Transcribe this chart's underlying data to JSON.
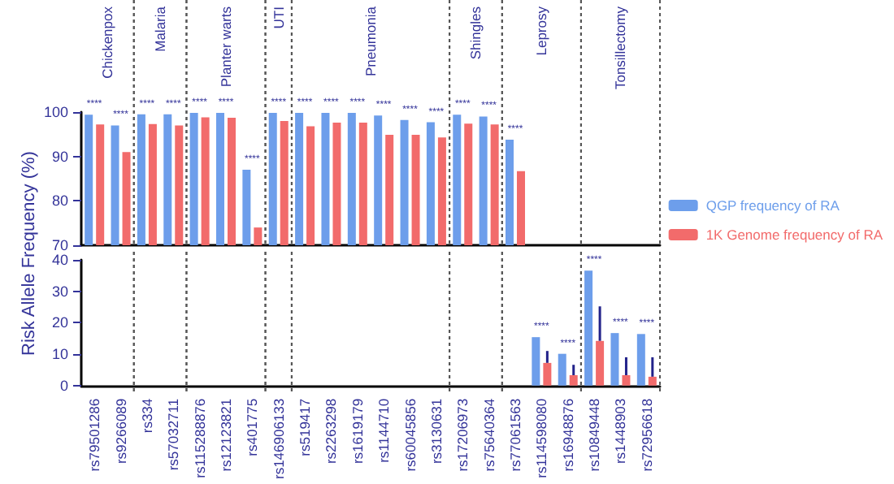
{
  "chart_data": [
    {
      "type": "bar",
      "ylabel": "Risk Allele Frequency (%)",
      "categories": [
        "rs79501286",
        "rs9266089",
        "rs334",
        "rs57032711",
        "rs115288876",
        "rs12123821",
        "rs401775",
        "rs146906133",
        "rs519417",
        "rs2263298",
        "rs1619179",
        "rs1144710",
        "rs60045856",
        "rs3130631",
        "rs17206973",
        "rs75640364",
        "rs77061563",
        "rs114598080",
        "rs16948876",
        "rs10849448",
        "rs1448903",
        "rs72956618"
      ],
      "series": [
        {
          "name": "QGP frequency of RA",
          "color": "#6d9eeb",
          "values": [
            99.4,
            97,
            99.5,
            99.5,
            99.8,
            99.8,
            87,
            99.8,
            99.8,
            99.8,
            99.8,
            99.2,
            98.2,
            97.7,
            99.4,
            99,
            93.8,
            null,
            null,
            null,
            null,
            null
          ]
        },
        {
          "name": "1K Genome frequency of RA",
          "color": "#f26b6b",
          "values": [
            97.2,
            91,
            97.3,
            97,
            98.8,
            98.7,
            74,
            98,
            96.8,
            97.6,
            97.6,
            94.9,
            94.9,
            94.3,
            97.4,
            97.2,
            86.7,
            null,
            null,
            null,
            null,
            null
          ]
        }
      ],
      "ylim": [
        70,
        100
      ],
      "yticks": [
        70,
        80,
        90,
        100
      ],
      "tick_labels": "y",
      "legend": "right",
      "grid": false,
      "annotations": [
        "Chickenpox",
        "Malaria",
        "Planter warts",
        "UTI",
        "Pneumonia",
        "Shingles",
        "Leprosy",
        "Tonsillectomy",
        {
          "text": "****",
          "x": "rs79501286",
          "y": 99.4
        },
        {
          "text": "****",
          "x": "rs9266089",
          "y": 97
        },
        {
          "text": "****",
          "x": "rs334",
          "y": 99.5
        },
        {
          "text": "****",
          "x": "rs57032711",
          "y": 99.5
        },
        {
          "text": "****",
          "x": "rs115288876",
          "y": 99.8
        },
        {
          "text": "****",
          "x": "rs12123821",
          "y": 99.8
        },
        {
          "text": "****",
          "x": "rs401775",
          "y": 87
        },
        {
          "text": "****",
          "x": "rs146906133",
          "y": 99.8
        },
        {
          "text": "****",
          "x": "rs519417",
          "y": 99.8
        },
        {
          "text": "****",
          "x": "rs2263298",
          "y": 99.8
        },
        {
          "text": "****",
          "x": "rs1619179",
          "y": 99.8
        },
        {
          "text": "****",
          "x": "rs1144710",
          "y": 99.2
        },
        {
          "text": "****",
          "x": "rs60045856",
          "y": 98.2
        },
        {
          "text": "****",
          "x": "rs3130631",
          "y": 97.7
        },
        {
          "text": "****",
          "x": "rs17206973",
          "y": 99.4
        },
        {
          "text": "****",
          "x": "rs75640364",
          "y": 99
        },
        {
          "text": "****",
          "x": "rs77061563",
          "y": 93.8
        }
      ]
    },
    {
      "type": "bar",
      "categories": [
        "rs79501286",
        "rs9266089",
        "rs334",
        "rs57032711",
        "rs115288876",
        "rs12123821",
        "rs401775",
        "rs146906133",
        "rs519417",
        "rs2263298",
        "rs1619179",
        "rs1144710",
        "rs60045856",
        "rs3130631",
        "rs17206973",
        "rs75640364",
        "rs77061563",
        "rs114598080",
        "rs16948876",
        "rs10849448",
        "rs1448903",
        "rs72956618"
      ],
      "series": [
        {
          "color": "#6d9eeb",
          "values": [
            null,
            null,
            null,
            null,
            null,
            null,
            null,
            null,
            null,
            null,
            null,
            null,
            null,
            null,
            null,
            null,
            null,
            15.4,
            10.1,
            36.6,
            16.7,
            16.4
          ]
        },
        {
          "color": "#f26b6b",
          "values": [
            null,
            null,
            null,
            null,
            null,
            null,
            null,
            null,
            null,
            null,
            null,
            null,
            null,
            null,
            null,
            null,
            null,
            7.2,
            3.3,
            14.2,
            3.3,
            2.8
          ],
          "errors": [
            null,
            null,
            null,
            null,
            null,
            null,
            null,
            null,
            null,
            null,
            null,
            null,
            null,
            null,
            null,
            null,
            null,
            [
              7.2,
              11
            ],
            [
              3.3,
              6.6
            ],
            [
              14.2,
              25.2
            ],
            [
              3.3,
              9
            ],
            [
              2.8,
              9
            ]
          ]
        }
      ],
      "ylim": [
        0,
        40
      ],
      "yticks": [
        0,
        10,
        20,
        30,
        40
      ],
      "grid": false,
      "annotations": [
        {
          "text": "****",
          "x": "rs114598080",
          "y": 15.4
        },
        {
          "text": "****",
          "x": "rs16948876",
          "y": 10.1
        },
        {
          "text": "****",
          "x": "rs10849448",
          "y": 36.6
        },
        {
          "text": "****",
          "x": "rs1448903",
          "y": 16.7
        },
        {
          "text": "****",
          "x": "rs72956618",
          "y": 16.4
        }
      ]
    }
  ]
}
